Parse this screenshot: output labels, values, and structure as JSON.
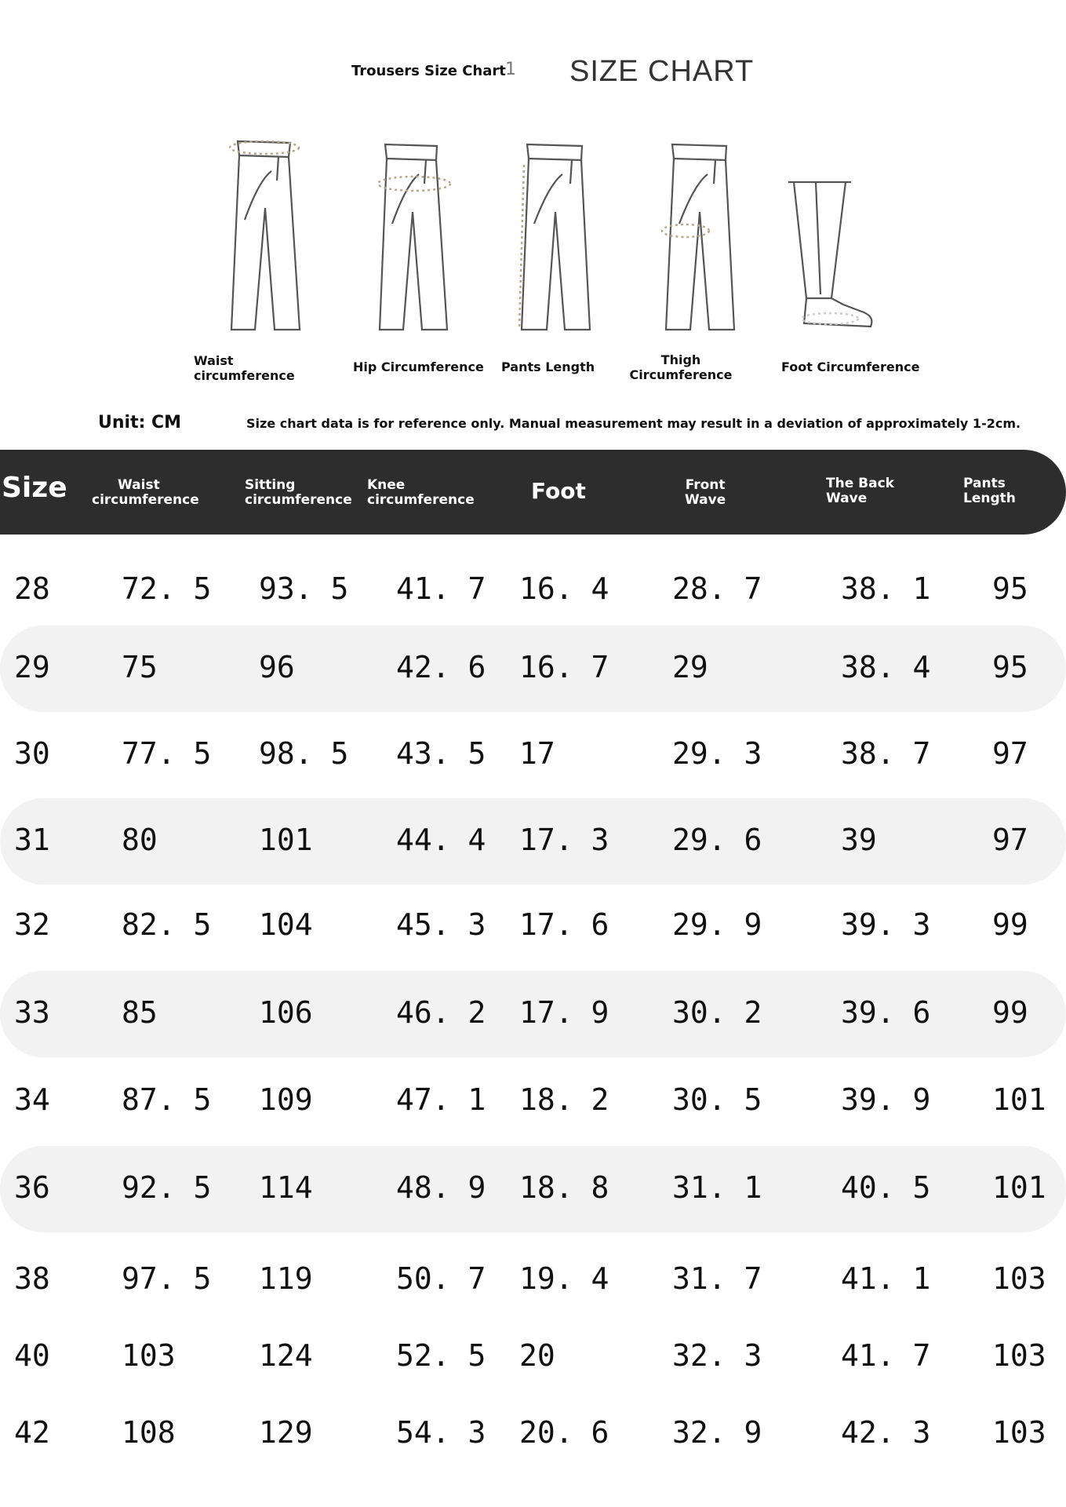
{
  "header": {
    "trousers_label": "Trousers Size Chart",
    "trousers_num": "1",
    "title": "SIZE CHART"
  },
  "figures": [
    {
      "label_line1": "Waist",
      "label_line2": "circumference",
      "icon": "trousers-waist-icon"
    },
    {
      "label_line1": "Hip Circumference",
      "label_line2": "",
      "icon": "trousers-hip-icon"
    },
    {
      "label_line1": "Pants Length",
      "label_line2": "",
      "icon": "trousers-length-icon"
    },
    {
      "label_line1": "Thigh",
      "label_line2": "Circumference",
      "icon": "trousers-thigh-icon"
    },
    {
      "label_line1": "Foot Circumference",
      "label_line2": "",
      "icon": "trouser-leg-foot-icon"
    }
  ],
  "unit_label": "Unit: CM",
  "note": "Size chart data is for reference only. Manual measurement may result in a deviation of approximately 1-2cm.",
  "table": {
    "columns": [
      {
        "line1": "Size",
        "line2": ""
      },
      {
        "line1": "Waist",
        "line2": "circumference"
      },
      {
        "line1": "Sitting",
        "line2": "circumference"
      },
      {
        "line1": "Knee",
        "line2": "circumference"
      },
      {
        "line1": "Foot",
        "line2": ""
      },
      {
        "line1": "Front",
        "line2": "Wave"
      },
      {
        "line1": "The Back",
        "line2": "Wave"
      },
      {
        "line1": "Pants",
        "line2": "Length"
      }
    ],
    "rows": [
      [
        "28",
        "72. 5",
        "93. 5",
        "41. 7",
        "16. 4",
        "28. 7",
        "38. 1",
        "95"
      ],
      [
        "29",
        "75",
        "96",
        "42. 6",
        "16. 7",
        "29",
        "38. 4",
        "95"
      ],
      [
        "30",
        "77. 5",
        "98. 5",
        "43. 5",
        "17",
        "29. 3",
        "38. 7",
        "97"
      ],
      [
        "31",
        "80",
        "101",
        "44. 4",
        "17. 3",
        "29. 6",
        "39",
        "97"
      ],
      [
        "32",
        "82. 5",
        "104",
        "45. 3",
        "17. 6",
        "29. 9",
        "39. 3",
        "99"
      ],
      [
        "33",
        "85",
        "106",
        "46. 2",
        "17. 9",
        "30. 2",
        "39. 6",
        "99"
      ],
      [
        "34",
        "87. 5",
        "109",
        "47. 1",
        "18. 2",
        "30. 5",
        "39. 9",
        "101"
      ],
      [
        "36",
        "92. 5",
        "114",
        "48. 9",
        "18. 8",
        "31. 1",
        "40. 5",
        "101"
      ],
      [
        "38",
        "97. 5",
        "119",
        "50. 7",
        "19. 4",
        "31. 7",
        "41. 1",
        "103"
      ],
      [
        "40",
        "103",
        "124",
        "52. 5",
        "20",
        "32. 3",
        "41. 7",
        "103"
      ],
      [
        "42",
        "108",
        "129",
        "54. 3",
        "20. 6",
        "32. 9",
        "42. 3",
        "103"
      ]
    ]
  }
}
